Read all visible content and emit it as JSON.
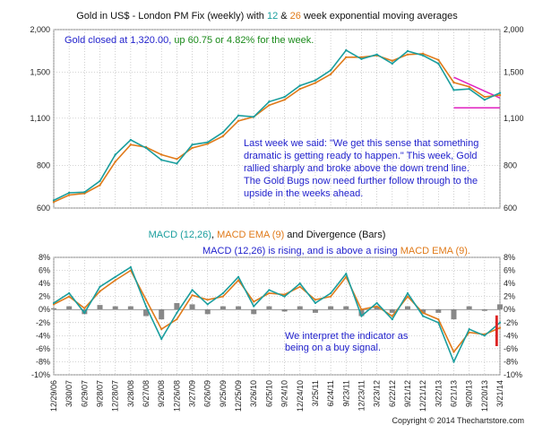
{
  "chart_data": [
    {
      "type": "line",
      "title_parts": [
        {
          "text": "Gold in US$ - London PM Fix (weekly) with ",
          "color": "#111111"
        },
        {
          "text": "12",
          "color": "#1a9e9e"
        },
        {
          "text": " & ",
          "color": "#111111"
        },
        {
          "text": "26",
          "color": "#e07a1a"
        },
        {
          "text": " week exponential moving averages",
          "color": "#111111"
        }
      ],
      "scale": "log",
      "ylim": [
        600,
        2000
      ],
      "yticks": [
        {
          "value": 600,
          "label": "600"
        },
        {
          "value": 800,
          "label": "800"
        },
        {
          "value": 1100,
          "label": "1,100"
        },
        {
          "value": 1500,
          "label": "1,500"
        },
        {
          "value": 2000,
          "label": "2,000"
        }
      ],
      "status_parts": [
        {
          "text": "Gold closed at 1,320.00, ",
          "color": "#1f1fcc"
        },
        {
          "text": "up 60.75 or 4.82% for the week.",
          "color": "#1a8a1a"
        }
      ],
      "commentary": [
        "Last week we said:  \"We get this sense that something",
        "dramatic is getting ready to happen.\"  This week, Gold",
        "rallied sharply and broke above the down trend line.",
        "The Gold Bugs now need further follow through to the",
        "upside in the weeks ahead."
      ],
      "series": [
        {
          "name": "12",
          "color": "#1a9e9e",
          "points": [
            [
              "12/29/06",
              632
            ],
            [
              "3/30/07",
              665
            ],
            [
              "6/29/07",
              668
            ],
            [
              "9/28/07",
              720
            ],
            [
              "12/28/07",
              860
            ],
            [
              "3/28/08",
              950
            ],
            [
              "6/27/08",
              900
            ],
            [
              "9/26/08",
              830
            ],
            [
              "12/26/08",
              810
            ],
            [
              "3/27/09",
              920
            ],
            [
              "6/26/09",
              935
            ],
            [
              "9/25/09",
              1000
            ],
            [
              "12/25/09",
              1120
            ],
            [
              "3/26/10",
              1110
            ],
            [
              "6/25/10",
              1230
            ],
            [
              "9/24/10",
              1270
            ],
            [
              "12/24/10",
              1370
            ],
            [
              "3/25/11",
              1420
            ],
            [
              "6/24/11",
              1520
            ],
            [
              "9/23/11",
              1740
            ],
            [
              "12/23/11",
              1640
            ],
            [
              "3/23/12",
              1690
            ],
            [
              "6/22/12",
              1590
            ],
            [
              "9/21/12",
              1730
            ],
            [
              "12/21/12",
              1680
            ],
            [
              "3/22/13",
              1590
            ],
            [
              "6/21/13",
              1330
            ],
            [
              "9/20/13",
              1340
            ],
            [
              "12/20/13",
              1245
            ],
            [
              "3/21/14",
              1305
            ]
          ]
        },
        {
          "name": "26",
          "color": "#e07a1a",
          "points": [
            [
              "12/29/06",
              625
            ],
            [
              "3/30/07",
              655
            ],
            [
              "6/29/07",
              662
            ],
            [
              "9/28/07",
              700
            ],
            [
              "12/28/07",
              820
            ],
            [
              "3/28/08",
              920
            ],
            [
              "6/27/08",
              905
            ],
            [
              "9/26/08",
              860
            ],
            [
              "12/26/08",
              835
            ],
            [
              "3/27/09",
              900
            ],
            [
              "6/26/09",
              925
            ],
            [
              "9/25/09",
              975
            ],
            [
              "12/25/09",
              1080
            ],
            [
              "3/26/10",
              1110
            ],
            [
              "6/25/10",
              1200
            ],
            [
              "9/24/10",
              1245
            ],
            [
              "12/24/10",
              1340
            ],
            [
              "3/25/11",
              1395
            ],
            [
              "6/24/11",
              1480
            ],
            [
              "9/23/11",
              1660
            ],
            [
              "12/23/11",
              1660
            ],
            [
              "3/23/12",
              1680
            ],
            [
              "6/22/12",
              1620
            ],
            [
              "9/21/12",
              1690
            ],
            [
              "12/21/12",
              1700
            ],
            [
              "3/22/13",
              1630
            ],
            [
              "6/21/13",
              1400
            ],
            [
              "9/20/13",
              1360
            ],
            [
              "12/20/13",
              1270
            ],
            [
              "3/21/14",
              1285
            ]
          ]
        }
      ],
      "annotations": [
        {
          "type": "down-trend-line",
          "color": "#e020c0",
          "from": [
            "6/21/13",
            1450
          ],
          "to": [
            "3/21/14",
            1260
          ]
        },
        {
          "type": "support-line",
          "color": "#e020c0",
          "from": [
            "6/21/13",
            1180
          ],
          "to": [
            "3/21/14",
            1180
          ]
        }
      ],
      "grid": true
    },
    {
      "type": "line",
      "title_parts": [
        {
          "text": "MACD (12,26)",
          "color": "#1a9e9e"
        },
        {
          "text": ", ",
          "color": "#111111"
        },
        {
          "text": "MACD EMA (9)",
          "color": "#e07a1a"
        },
        {
          "text": " and Divergence (Bars)",
          "color": "#111111"
        }
      ],
      "subtitle_parts": [
        {
          "text": "MACD (12,26) is rising, and is above a rising ",
          "color": "#1f1fcc"
        },
        {
          "text": "MACD EMA (9).",
          "color": "#e07a1a"
        }
      ],
      "note": [
        "We interpret the indicator as",
        "being on a buy signal."
      ],
      "ylim": [
        -10,
        8
      ],
      "yticks": [
        {
          "value": 8,
          "label": "8%"
        },
        {
          "value": 6,
          "label": "6%"
        },
        {
          "value": 4,
          "label": "4%"
        },
        {
          "value": 2,
          "label": "2%"
        },
        {
          "value": 0,
          "label": "0%"
        },
        {
          "value": -2,
          "label": "-2%"
        },
        {
          "value": -4,
          "label": "-4%"
        },
        {
          "value": -6,
          "label": "-6%"
        },
        {
          "value": -8,
          "label": "-8%"
        },
        {
          "value": -10,
          "label": "-10%"
        }
      ],
      "series": [
        {
          "name": "MACD (12,26)",
          "color": "#1a9e9e",
          "points": [
            [
              "12/29/06",
              1.0
            ],
            [
              "3/30/07",
              2.5
            ],
            [
              "6/29/07",
              -0.5
            ],
            [
              "9/28/07",
              3.5
            ],
            [
              "12/28/07",
              5.0
            ],
            [
              "3/28/08",
              6.5
            ],
            [
              "6/27/08",
              0.5
            ],
            [
              "9/26/08",
              -4.5
            ],
            [
              "12/26/08",
              -0.5
            ],
            [
              "3/27/09",
              3.0
            ],
            [
              "6/26/09",
              0.8
            ],
            [
              "9/25/09",
              2.5
            ],
            [
              "12/25/09",
              5.0
            ],
            [
              "3/26/10",
              0.5
            ],
            [
              "6/25/10",
              3.0
            ],
            [
              "9/24/10",
              2.0
            ],
            [
              "12/24/10",
              4.0
            ],
            [
              "3/25/11",
              1.0
            ],
            [
              "6/24/11",
              2.5
            ],
            [
              "9/23/11",
              5.5
            ],
            [
              "12/23/11",
              -1.0
            ],
            [
              "3/23/12",
              1.0
            ],
            [
              "6/22/12",
              -1.5
            ],
            [
              "9/21/12",
              2.5
            ],
            [
              "12/21/12",
              -1.0
            ],
            [
              "3/22/13",
              -2.0
            ],
            [
              "6/21/13",
              -8.0
            ],
            [
              "9/20/13",
              -3.0
            ],
            [
              "12/20/13",
              -4.0
            ],
            [
              "3/21/14",
              -2.0
            ]
          ]
        },
        {
          "name": "MACD EMA (9)",
          "color": "#e07a1a",
          "points": [
            [
              "12/29/06",
              0.8
            ],
            [
              "3/30/07",
              2.0
            ],
            [
              "6/29/07",
              0.2
            ],
            [
              "9/28/07",
              2.8
            ],
            [
              "12/28/07",
              4.5
            ],
            [
              "3/28/08",
              6.0
            ],
            [
              "6/27/08",
              1.5
            ],
            [
              "9/26/08",
              -3.0
            ],
            [
              "12/26/08",
              -1.5
            ],
            [
              "3/27/09",
              2.2
            ],
            [
              "6/26/09",
              1.5
            ],
            [
              "9/25/09",
              2.0
            ],
            [
              "12/25/09",
              4.5
            ],
            [
              "3/26/10",
              1.2
            ],
            [
              "6/25/10",
              2.5
            ],
            [
              "9/24/10",
              2.3
            ],
            [
              "12/24/10",
              3.5
            ],
            [
              "3/25/11",
              1.5
            ],
            [
              "6/24/11",
              2.0
            ],
            [
              "9/23/11",
              5.0
            ],
            [
              "12/23/11",
              0.0
            ],
            [
              "3/23/12",
              0.5
            ],
            [
              "6/22/12",
              -1.0
            ],
            [
              "9/21/12",
              2.0
            ],
            [
              "12/21/12",
              -0.5
            ],
            [
              "3/22/13",
              -1.5
            ],
            [
              "6/21/13",
              -6.5
            ],
            [
              "9/20/13",
              -3.5
            ],
            [
              "12/20/13",
              -3.8
            ],
            [
              "3/21/14",
              -2.8
            ]
          ]
        },
        {
          "name": "Divergence",
          "color": "#888888",
          "bars": true,
          "points": [
            [
              "12/29/06",
              0.2
            ],
            [
              "3/30/07",
              0.5
            ],
            [
              "6/29/07",
              -0.7
            ],
            [
              "9/28/07",
              0.7
            ],
            [
              "12/28/07",
              0.5
            ],
            [
              "3/28/08",
              0.5
            ],
            [
              "6/27/08",
              -1.0
            ],
            [
              "9/26/08",
              -1.5
            ],
            [
              "12/26/08",
              1.0
            ],
            [
              "3/27/09",
              0.8
            ],
            [
              "6/26/09",
              -0.7
            ],
            [
              "9/25/09",
              0.5
            ],
            [
              "12/25/09",
              0.5
            ],
            [
              "3/26/10",
              -0.7
            ],
            [
              "6/25/10",
              0.5
            ],
            [
              "9/24/10",
              -0.3
            ],
            [
              "12/24/10",
              0.5
            ],
            [
              "3/25/11",
              -0.5
            ],
            [
              "6/24/11",
              0.5
            ],
            [
              "9/23/11",
              0.5
            ],
            [
              "12/23/11",
              -1.0
            ],
            [
              "3/23/12",
              0.5
            ],
            [
              "6/22/12",
              -0.5
            ],
            [
              "9/21/12",
              0.5
            ],
            [
              "12/21/12",
              -0.5
            ],
            [
              "3/22/13",
              -0.5
            ],
            [
              "6/21/13",
              -1.5
            ],
            [
              "9/20/13",
              0.5
            ],
            [
              "12/20/13",
              -0.2
            ],
            [
              "3/21/14",
              0.8
            ]
          ]
        }
      ],
      "annotations": [
        {
          "type": "highlight-box",
          "color": "#dd2222",
          "from": [
            "9/20/13",
            -8
          ],
          "to": [
            "3/21/14",
            -1
          ]
        }
      ],
      "grid": true
    }
  ],
  "x_axis": {
    "labels": [
      "12/29/06",
      "3/30/07",
      "6/29/07",
      "9/28/07",
      "12/28/07",
      "3/28/08",
      "6/27/08",
      "9/26/08",
      "12/26/08",
      "3/27/09",
      "6/26/09",
      "9/25/09",
      "12/25/09",
      "3/26/10",
      "6/25/10",
      "9/24/10",
      "12/24/10",
      "3/25/11",
      "6/24/11",
      "9/23/11",
      "12/23/11",
      "3/23/12",
      "6/22/12",
      "9/21/12",
      "12/21/12",
      "3/22/13",
      "6/21/13",
      "9/20/13",
      "12/20/13",
      "3/21/14"
    ]
  },
  "footer": {
    "copyright": "Copyright © 2014  Thechartstore.com"
  },
  "colors": {
    "ema12": "#1a9e9e",
    "ema26": "#e07a1a",
    "blue_text": "#1f1fcc",
    "green_text": "#1a8a1a",
    "trend_lines": "#e020c0",
    "box": "#dd2222",
    "grid": "#bbbbbb"
  }
}
